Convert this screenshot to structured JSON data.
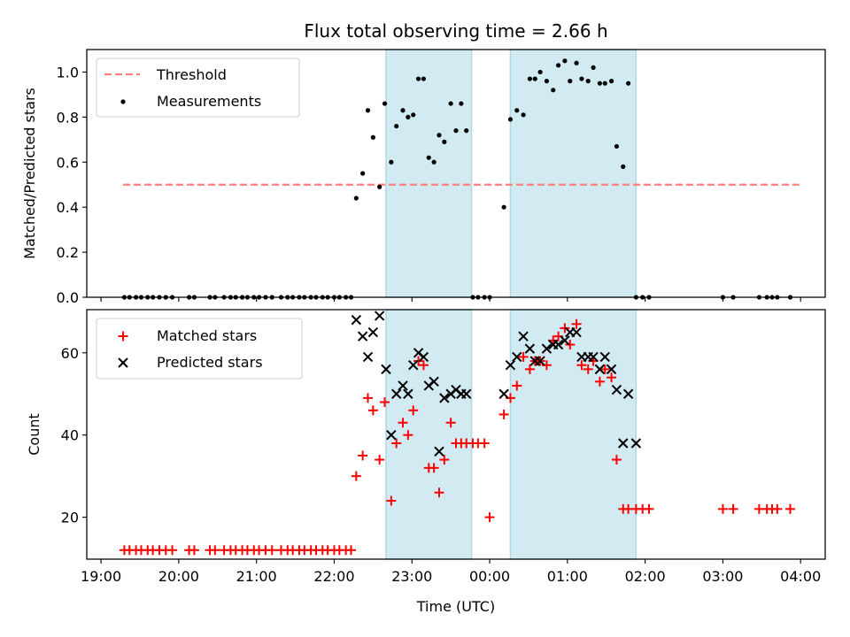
{
  "chart_data": {
    "type": "scatter",
    "title": "Flux total observing time = 2.66 h",
    "xlabel": "Time (UTC)",
    "x_ticks": [
      "19:00",
      "20:00",
      "21:00",
      "22:00",
      "23:00",
      "00:00",
      "01:00",
      "02:00",
      "03:00",
      "04:00"
    ],
    "xlim": [
      "18:49",
      "04:19"
    ],
    "highlight_intervals": [
      [
        "22:40",
        "23:46"
      ],
      [
        "00:16",
        "01:53"
      ]
    ],
    "highlight_color": "#add8e6",
    "panels": [
      {
        "name": "ratio",
        "ylabel": "Matched/Predicted stars",
        "ylim": [
          0,
          1.1
        ],
        "y_ticks": [
          "0.0",
          "0.2",
          "0.4",
          "0.6",
          "0.8",
          "1.0"
        ],
        "legend": {
          "placement": "top-left",
          "entries": [
            "Threshold",
            "Measurements"
          ]
        },
        "series": [
          {
            "name": "Threshold",
            "style": "dashed-line",
            "color": "#ff7f7f",
            "x": [
              "19:17",
              "03:59"
            ],
            "y": [
              0.5,
              0.5
            ]
          },
          {
            "name": "Measurements",
            "style": "dot",
            "color": "#000000",
            "x": [
              "19:18",
              "19:22",
              "19:27",
              "19:31",
              "19:36",
              "19:40",
              "19:45",
              "19:50",
              "19:55",
              "20:08",
              "20:12",
              "20:24",
              "20:28",
              "20:35",
              "20:40",
              "20:44",
              "20:49",
              "20:53",
              "20:58",
              "21:02",
              "21:07",
              "21:12",
              "21:19",
              "21:24",
              "21:28",
              "21:33",
              "21:37",
              "21:42",
              "21:46",
              "21:51",
              "21:55",
              "22:00",
              "22:04",
              "22:09",
              "22:13",
              "22:17",
              "22:22",
              "22:26",
              "22:30",
              "22:35",
              "22:39",
              "22:44",
              "22:48",
              "22:53",
              "22:57",
              "23:01",
              "23:05",
              "23:09",
              "23:13",
              "23:17",
              "23:21",
              "23:25",
              "23:30",
              "23:34",
              "23:38",
              "23:42",
              "23:47",
              "23:51",
              "23:56",
              "00:00",
              "00:11",
              "00:16",
              "00:21",
              "00:26",
              "00:31",
              "00:35",
              "00:39",
              "00:44",
              "00:49",
              "00:53",
              "00:58",
              "01:02",
              "01:07",
              "01:11",
              "01:16",
              "01:20",
              "01:25",
              "01:29",
              "01:34",
              "01:38",
              "01:43",
              "01:47",
              "01:53",
              "01:58",
              "02:03",
              "03:00",
              "03:08",
              "03:28",
              "03:34",
              "03:38",
              "03:42",
              "03:52"
            ],
            "y": [
              0,
              0,
              0,
              0,
              0,
              0,
              0,
              0,
              0,
              0,
              0,
              0,
              0,
              0,
              0,
              0,
              0,
              0,
              0,
              0,
              0,
              0,
              0,
              0,
              0,
              0,
              0,
              0,
              0,
              0,
              0,
              0,
              0,
              0,
              0,
              0.44,
              0.55,
              0.83,
              0.71,
              0.49,
              0.86,
              0.6,
              0.76,
              0.83,
              0.8,
              0.81,
              0.97,
              0.97,
              0.62,
              0.6,
              0.72,
              0.69,
              0.86,
              0.74,
              0.86,
              0.74,
              0,
              0,
              0,
              0,
              0.4,
              0.79,
              0.83,
              0.81,
              0.97,
              0.97,
              1.0,
              0.96,
              0.92,
              1.03,
              1.05,
              0.96,
              1.04,
              0.97,
              0.96,
              1.02,
              0.95,
              0.95,
              0.96,
              0.67,
              0.58,
              0.95,
              0,
              0,
              0,
              0,
              0,
              0,
              0,
              0,
              0,
              0
            ]
          }
        ]
      },
      {
        "name": "counts",
        "ylabel": "Count",
        "ylim": [
          9.8,
          70.5
        ],
        "y_ticks": [
          "20",
          "40",
          "60"
        ],
        "legend": {
          "placement": "top-left",
          "entries": [
            "Matched stars",
            "Predicted stars"
          ]
        },
        "series": [
          {
            "name": "Matched stars",
            "marker": "plus",
            "color": "#ff0000",
            "x": [
              "19:18",
              "19:22",
              "19:27",
              "19:31",
              "19:36",
              "19:40",
              "19:45",
              "19:50",
              "19:55",
              "20:08",
              "20:12",
              "20:24",
              "20:28",
              "20:35",
              "20:40",
              "20:44",
              "20:49",
              "20:53",
              "20:58",
              "21:02",
              "21:07",
              "21:12",
              "21:19",
              "21:24",
              "21:28",
              "21:33",
              "21:37",
              "21:42",
              "21:46",
              "21:51",
              "21:55",
              "22:00",
              "22:04",
              "22:09",
              "22:13",
              "22:17",
              "22:22",
              "22:26",
              "22:30",
              "22:35",
              "22:39",
              "22:44",
              "22:48",
              "22:53",
              "22:57",
              "23:01",
              "23:05",
              "23:09",
              "23:13",
              "23:17",
              "23:21",
              "23:25",
              "23:30",
              "23:34",
              "23:38",
              "23:42",
              "23:47",
              "23:51",
              "23:56",
              "00:00",
              "00:11",
              "00:16",
              "00:21",
              "00:26",
              "00:31",
              "00:35",
              "00:39",
              "00:44",
              "00:49",
              "00:53",
              "00:58",
              "01:02",
              "01:07",
              "01:11",
              "01:16",
              "01:20",
              "01:25",
              "01:29",
              "01:34",
              "01:38",
              "01:43",
              "01:47",
              "01:53",
              "01:58",
              "02:03",
              "03:00",
              "03:08",
              "03:28",
              "03:34",
              "03:38",
              "03:42",
              "03:52"
            ],
            "y": [
              12,
              12,
              12,
              12,
              12,
              12,
              12,
              12,
              12,
              12,
              12,
              12,
              12,
              12,
              12,
              12,
              12,
              12,
              12,
              12,
              12,
              12,
              12,
              12,
              12,
              12,
              12,
              12,
              12,
              12,
              12,
              12,
              12,
              12,
              12,
              30,
              35,
              49,
              46,
              34,
              48,
              24,
              38,
              43,
              40,
              46,
              58,
              57,
              32,
              32,
              26,
              34,
              43,
              38,
              38,
              38,
              38,
              38,
              38,
              20,
              45,
              49,
              52,
              59,
              56,
              58,
              58,
              57,
              63,
              64,
              66,
              62,
              67,
              57,
              56,
              58,
              53,
              56,
              54,
              34,
              22,
              22,
              22,
              22,
              22,
              22,
              22,
              22,
              22,
              22,
              22,
              22
            ]
          },
          {
            "name": "Predicted stars",
            "marker": "x",
            "color": "#000000",
            "x": [
              "22:17",
              "22:22",
              "22:26",
              "22:30",
              "22:35",
              "22:40",
              "22:44",
              "22:48",
              "22:53",
              "22:57",
              "23:01",
              "23:05",
              "23:09",
              "23:13",
              "23:17",
              "23:21",
              "23:25",
              "23:30",
              "23:34",
              "23:38",
              "23:42",
              "00:11",
              "00:16",
              "00:21",
              "00:26",
              "00:31",
              "00:35",
              "00:39",
              "00:44",
              "00:49",
              "00:53",
              "00:58",
              "01:02",
              "01:07",
              "01:11",
              "01:16",
              "01:20",
              "01:25",
              "01:29",
              "01:34",
              "01:38",
              "01:43",
              "01:47",
              "01:53"
            ],
            "y": [
              68,
              64,
              59,
              65,
              69,
              56,
              40,
              50,
              52,
              50,
              57,
              60,
              59,
              52,
              53,
              36,
              49,
              50,
              51,
              50,
              50,
              50,
              57,
              59,
              64,
              61,
              58,
              58,
              61,
              62,
              62,
              63,
              65,
              65,
              59,
              59,
              59,
              56,
              59,
              56,
              51,
              38,
              50,
              38
            ]
          }
        ]
      }
    ]
  }
}
